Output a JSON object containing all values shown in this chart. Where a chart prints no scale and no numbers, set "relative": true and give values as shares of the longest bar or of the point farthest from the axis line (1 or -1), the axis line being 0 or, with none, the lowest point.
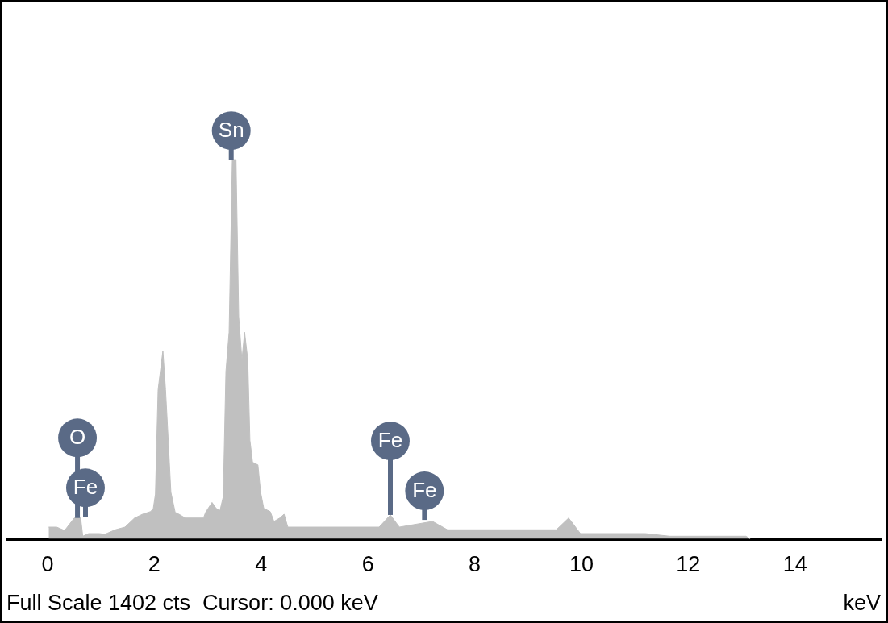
{
  "chart_data": {
    "type": "area",
    "relative": true,
    "xlabel": "keV",
    "xlim": [
      -0.74,
      15.62
    ],
    "xticks": [
      0,
      2,
      4,
      6,
      8,
      10,
      12,
      14
    ],
    "x": [
      0.02,
      0.17,
      0.32,
      0.5,
      0.62,
      0.66,
      0.77,
      0.97,
      1.07,
      1.27,
      1.45,
      1.63,
      1.78,
      1.93,
      1.98,
      2.02,
      2.07,
      2.16,
      2.21,
      2.25,
      2.31,
      2.39,
      2.46,
      2.58,
      2.92,
      2.96,
      3.08,
      3.16,
      3.23,
      3.29,
      3.34,
      3.4,
      3.46,
      3.53,
      3.58,
      3.64,
      3.69,
      3.75,
      3.79,
      3.84,
      3.94,
      3.99,
      4.05,
      4.17,
      4.24,
      4.35,
      4.43,
      4.5,
      5.15,
      6.21,
      6.42,
      6.59,
      7.21,
      7.49,
      9.53,
      9.76,
      9.98,
      11.19,
      11.65,
      13.08,
      13.16
    ],
    "series": [
      {
        "color": "#c0c0c0",
        "values": [
          0.031,
          0.031,
          0.022,
          0.055,
          0.055,
          0.007,
          0.014,
          0.014,
          0.012,
          0.024,
          0.031,
          0.055,
          0.065,
          0.072,
          0.08,
          0.118,
          0.393,
          0.496,
          0.393,
          0.287,
          0.123,
          0.07,
          0.065,
          0.055,
          0.055,
          0.07,
          0.096,
          0.08,
          0.075,
          0.111,
          0.441,
          0.545,
          1,
          1,
          0.586,
          0.472,
          0.545,
          0.472,
          0.26,
          0.202,
          0.195,
          0.123,
          0.08,
          0.072,
          0.046,
          0.055,
          0.065,
          0.031,
          0.031,
          0.031,
          0.063,
          0.031,
          0.046,
          0.024,
          0.024,
          0.055,
          0.014,
          0.014,
          0.007,
          0.007,
          0
        ]
      }
    ],
    "marker": "none",
    "legend": false,
    "grid": false,
    "annotations": [
      {
        "text": "O",
        "x": 0.56,
        "y": 0.055
      },
      {
        "text": "Fe",
        "x": 0.71,
        "y": 0.058
      },
      {
        "text": "Sn",
        "x": 3.44,
        "y": 1
      },
      {
        "text": "Fe",
        "x": 6.42,
        "y": 0.063
      },
      {
        "text": "Fe",
        "x": 7.06,
        "y": 0.05
      },
      "Full Scale 1402 cts  Cursor: 0.000 keV"
    ]
  }
}
